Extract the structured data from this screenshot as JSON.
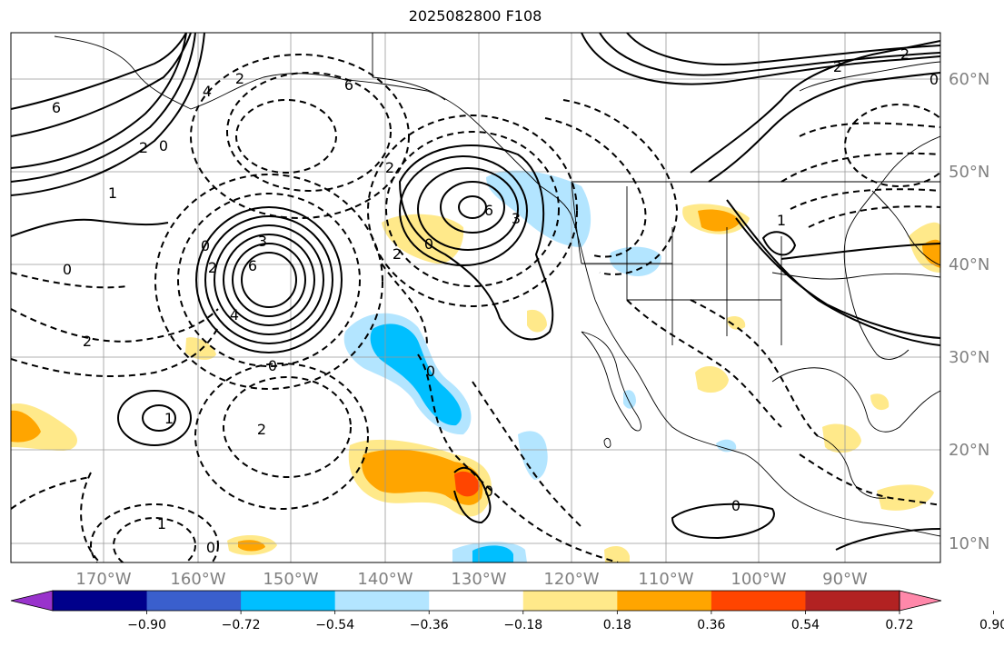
{
  "title": "2025082800 F108",
  "longitude_labels": [
    "170°W",
    "160°W",
    "150°W",
    "140°W",
    "130°W",
    "120°W",
    "110°W",
    "100°W",
    "90°W"
  ],
  "latitude_labels": [
    "60°N",
    "50°N",
    "40°N",
    "30°N",
    "20°N",
    "10°N"
  ],
  "colorbar": {
    "colors": [
      "#9933cc",
      "#00008b",
      "#3a5fcd",
      "#00bfff",
      "#b3e5ff",
      "#ffffff",
      "#ffe98a",
      "#ffa500",
      "#ff4500",
      "#b22222",
      "#ff88aa"
    ],
    "tick_labels": [
      "−0.90",
      "−0.72",
      "−0.54",
      "−0.36",
      "−0.18",
      "0.18",
      "0.36",
      "0.54",
      "0.72",
      "0.90"
    ]
  },
  "contour_labels": [
    {
      "text": "6"
    },
    {
      "text": "2"
    },
    {
      "text": "0"
    },
    {
      "text": "1"
    },
    {
      "text": "6"
    },
    {
      "text": "2"
    },
    {
      "text": "4"
    },
    {
      "text": "2"
    },
    {
      "text": "3"
    },
    {
      "text": "6"
    },
    {
      "text": "4"
    },
    {
      "text": "0"
    },
    {
      "text": "2"
    },
    {
      "text": "2"
    },
    {
      "text": "0"
    },
    {
      "text": "1"
    },
    {
      "text": "2"
    },
    {
      "text": "1"
    },
    {
      "text": "0"
    },
    {
      "text": "2"
    },
    {
      "text": "6"
    },
    {
      "text": "3"
    },
    {
      "text": "0"
    },
    {
      "text": "0"
    },
    {
      "text": "0"
    },
    {
      "text": "1"
    },
    {
      "text": "2"
    },
    {
      "text": "2"
    },
    {
      "text": "0"
    },
    {
      "text": "0"
    },
    {
      "text": "0"
    }
  ]
}
